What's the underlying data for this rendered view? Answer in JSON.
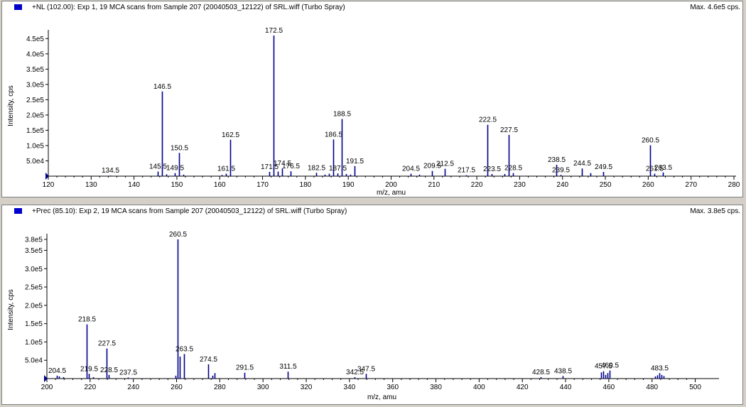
{
  "charts": [
    {
      "header": {
        "title": "+NL (102.00): Exp 1, 19 MCA scans from Sample 207 (20040503_12122) of SRL.wiff (Turbo Spray)",
        "max": "Max. 4.6e5 cps."
      },
      "ylabel": "Intensity, cps",
      "xlabel": "m/z, amu",
      "ytick_labels": [
        "5.0e4",
        "1.0e5",
        "1.5e5",
        "2.0e5",
        "2.5e5",
        "3.0e5",
        "3.5e5",
        "4.0e5",
        "4.5e5"
      ],
      "xtick_labels": [
        "120",
        "130",
        "140",
        "150",
        "160",
        "170",
        "180",
        "190",
        "200",
        "210",
        "220",
        "230",
        "240",
        "250",
        "260",
        "270",
        "280"
      ]
    },
    {
      "header": {
        "title": "+Prec (85.10): Exp 2, 19 MCA scans from Sample 207 (20040503_12122) of SRL.wiff (Turbo Spray)",
        "max": "Max. 3.8e5 cps."
      },
      "ylabel": "Intensity, cps",
      "xlabel": "m/z, amu",
      "ytick_labels": [
        "5.0e4",
        "1.0e5",
        "1.5e5",
        "2.0e5",
        "2.5e5",
        "3.0e5",
        "3.5e5",
        "3.8e5"
      ],
      "xtick_labels": [
        "200",
        "220",
        "240",
        "260",
        "280",
        "300",
        "320",
        "340",
        "360",
        "380",
        "400",
        "420",
        "440",
        "460",
        "480",
        "500"
      ]
    }
  ],
  "chart_data": [
    {
      "type": "bar",
      "style": "mass-spectrum stick plot",
      "color": "#00008b",
      "xlim": [
        120,
        280
      ],
      "ylim": [
        0,
        460000
      ],
      "yticks": [
        50000,
        100000,
        150000,
        200000,
        250000,
        300000,
        350000,
        400000,
        450000
      ],
      "xticks": [
        120,
        130,
        140,
        150,
        160,
        170,
        180,
        190,
        200,
        210,
        220,
        230,
        240,
        250,
        260,
        270,
        280
      ],
      "peaks": [
        {
          "mz": 134.5,
          "intensity": 2000,
          "label": "134.5"
        },
        {
          "mz": 145.5,
          "intensity": 15000,
          "label": "145.5"
        },
        {
          "mz": 146.5,
          "intensity": 277000,
          "label": "146.5"
        },
        {
          "mz": 147.5,
          "intensity": 6000
        },
        {
          "mz": 149.5,
          "intensity": 10000,
          "label": "149.5"
        },
        {
          "mz": 150.5,
          "intensity": 76000,
          "label": "150.5"
        },
        {
          "mz": 151.5,
          "intensity": 5000
        },
        {
          "mz": 160.5,
          "intensity": 4000
        },
        {
          "mz": 161.5,
          "intensity": 8000,
          "label": "161.5"
        },
        {
          "mz": 162.5,
          "intensity": 119000,
          "label": "162.5"
        },
        {
          "mz": 171.5,
          "intensity": 14000,
          "label": "171.5"
        },
        {
          "mz": 172.5,
          "intensity": 460000,
          "label": "172.5"
        },
        {
          "mz": 173.5,
          "intensity": 15000
        },
        {
          "mz": 174.5,
          "intensity": 25000,
          "label": "174.5"
        },
        {
          "mz": 176.5,
          "intensity": 16000,
          "label": "176.5"
        },
        {
          "mz": 182.5,
          "intensity": 11000,
          "label": "182.5"
        },
        {
          "mz": 184.5,
          "intensity": 5000
        },
        {
          "mz": 185.5,
          "intensity": 8000
        },
        {
          "mz": 186.5,
          "intensity": 120000,
          "label": "186.5"
        },
        {
          "mz": 187.5,
          "intensity": 9000,
          "label": "187.5"
        },
        {
          "mz": 188.5,
          "intensity": 187000,
          "label": "188.5"
        },
        {
          "mz": 189.5,
          "intensity": 7000
        },
        {
          "mz": 190.5,
          "intensity": 5000
        },
        {
          "mz": 191.5,
          "intensity": 33000,
          "label": "191.5"
        },
        {
          "mz": 204.5,
          "intensity": 8000,
          "label": "204.5"
        },
        {
          "mz": 206.5,
          "intensity": 5000
        },
        {
          "mz": 209.5,
          "intensity": 17000,
          "label": "209.5"
        },
        {
          "mz": 212.5,
          "intensity": 24000,
          "label": "212.5"
        },
        {
          "mz": 217.5,
          "intensity": 3000,
          "label": "217.5"
        },
        {
          "mz": 222.5,
          "intensity": 168000,
          "label": "222.5"
        },
        {
          "mz": 223.5,
          "intensity": 7000,
          "label": "223.5"
        },
        {
          "mz": 226.5,
          "intensity": 7000
        },
        {
          "mz": 227.5,
          "intensity": 135000,
          "label": "227.5"
        },
        {
          "mz": 228.5,
          "intensity": 10000,
          "label": "228.5"
        },
        {
          "mz": 238.5,
          "intensity": 37000,
          "label": "238.5"
        },
        {
          "mz": 239.5,
          "intensity": 4000,
          "label": "239.5"
        },
        {
          "mz": 244.5,
          "intensity": 25000,
          "label": "244.5"
        },
        {
          "mz": 246.5,
          "intensity": 10000
        },
        {
          "mz": 249.5,
          "intensity": 14000,
          "label": "249.5"
        },
        {
          "mz": 260.5,
          "intensity": 101000,
          "label": "260.5"
        },
        {
          "mz": 261.5,
          "intensity": 8000,
          "label": "261.5"
        },
        {
          "mz": 263.5,
          "intensity": 12000,
          "label": "263.5"
        }
      ]
    },
    {
      "type": "bar",
      "style": "mass-spectrum stick plot",
      "color": "#00008b",
      "xlim": [
        200,
        510
      ],
      "ylim": [
        0,
        380000
      ],
      "yticks": [
        50000,
        100000,
        150000,
        200000,
        250000,
        300000,
        350000,
        380000
      ],
      "xticks": [
        200,
        220,
        240,
        260,
        280,
        300,
        320,
        340,
        360,
        380,
        400,
        420,
        440,
        460,
        480,
        500
      ],
      "peaks": [
        {
          "mz": 204.5,
          "intensity": 8000,
          "label": "204.5"
        },
        {
          "mz": 205.5,
          "intensity": 6000
        },
        {
          "mz": 207.5,
          "intensity": 4000
        },
        {
          "mz": 218.5,
          "intensity": 148000,
          "label": "218.5"
        },
        {
          "mz": 219.5,
          "intensity": 13000,
          "label": "219.5"
        },
        {
          "mz": 221.5,
          "intensity": 4000
        },
        {
          "mz": 227.5,
          "intensity": 82000,
          "label": "227.5"
        },
        {
          "mz": 228.5,
          "intensity": 10000,
          "label": "228.5"
        },
        {
          "mz": 237.5,
          "intensity": 3000,
          "label": "237.5"
        },
        {
          "mz": 259.5,
          "intensity": 8000
        },
        {
          "mz": 260.5,
          "intensity": 380000,
          "label": "260.5"
        },
        {
          "mz": 261.5,
          "intensity": 60000
        },
        {
          "mz": 263.5,
          "intensity": 67000,
          "label": "263.5"
        },
        {
          "mz": 274.5,
          "intensity": 39000,
          "label": "274.5"
        },
        {
          "mz": 276.5,
          "intensity": 8000
        },
        {
          "mz": 277.5,
          "intensity": 15000
        },
        {
          "mz": 291.5,
          "intensity": 16000,
          "label": "291.5"
        },
        {
          "mz": 311.5,
          "intensity": 19000,
          "label": "311.5"
        },
        {
          "mz": 342.5,
          "intensity": 4000,
          "label": "342.5"
        },
        {
          "mz": 347.5,
          "intensity": 13000,
          "label": "347.5"
        },
        {
          "mz": 428.5,
          "intensity": 4000,
          "label": "428.5"
        },
        {
          "mz": 438.5,
          "intensity": 7000,
          "label": "438.5"
        },
        {
          "mz": 456.5,
          "intensity": 17000
        },
        {
          "mz": 457.5,
          "intensity": 20000,
          "label": "457.5"
        },
        {
          "mz": 458.5,
          "intensity": 10000
        },
        {
          "mz": 459.5,
          "intensity": 15000
        },
        {
          "mz": 460.5,
          "intensity": 22000,
          "label": "460.5"
        },
        {
          "mz": 481.5,
          "intensity": 6000
        },
        {
          "mz": 482.5,
          "intensity": 9000
        },
        {
          "mz": 483.5,
          "intensity": 15000,
          "label": "483.5"
        },
        {
          "mz": 484.5,
          "intensity": 10000
        },
        {
          "mz": 485.5,
          "intensity": 7000
        }
      ]
    }
  ]
}
